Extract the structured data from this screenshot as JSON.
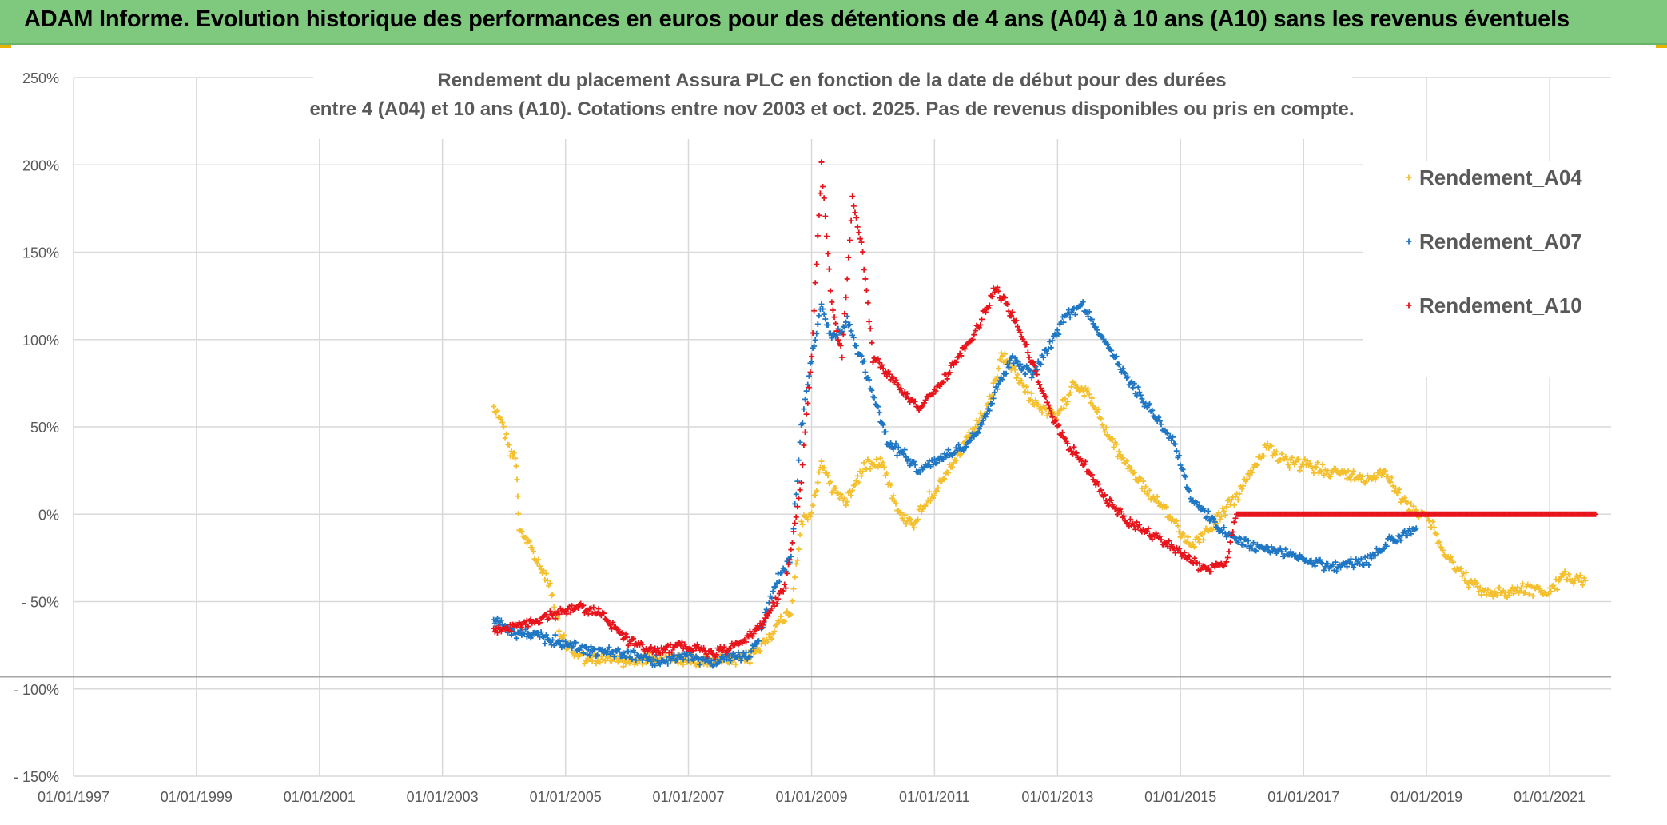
{
  "header": {
    "banner": "ADAM Informe. Evolution historique des performances en euros pour des détentions de 4 ans (A04) à 10 ans (A10) sans les revenus éventuels"
  },
  "colors": {
    "banner_bg": "#7fc97f",
    "grid": "#d9d9d9",
    "A04": "#f5c02f",
    "A07": "#1f77c4",
    "A10": "#e8141c"
  },
  "chart_data": {
    "type": "scatter",
    "title_lines": [
      "Rendement du placement Assura PLC en fonction de la date de début pour des durées",
      "entre 4 (A04) et 10 ans (A10). Cotations entre nov 2003 et oct. 2025. Pas de revenus disponibles ou pris en compte."
    ],
    "xlabel": "",
    "ylabel": "",
    "x_range": [
      "1997-01-01",
      "2022-01-01"
    ],
    "x_ticks": [
      "01/01/1997",
      "01/01/1999",
      "01/01/2001",
      "01/01/2003",
      "01/01/2005",
      "01/01/2007",
      "01/01/2009",
      "01/01/2011",
      "01/01/2013",
      "01/01/2015",
      "01/01/2017",
      "01/01/2019",
      "01/01/2021"
    ],
    "y_range": [
      -150,
      250
    ],
    "y_ticks": [
      "250%",
      "200%",
      "150%",
      "100%",
      "50%",
      "0%",
      "- 50%",
      "- 100%",
      "- 150%"
    ],
    "legend_position": "top-right",
    "grid": true,
    "series": [
      {
        "name": "Rendement_A04",
        "points": [
          [
            "2003-11-01",
            62
          ],
          [
            "2003-12-15",
            55
          ],
          [
            "2004-02-01",
            38
          ],
          [
            "2004-03-15",
            30
          ],
          [
            "2004-04-01",
            -8
          ],
          [
            "2004-06-01",
            -18
          ],
          [
            "2004-08-01",
            -30
          ],
          [
            "2004-10-01",
            -40
          ],
          [
            "2004-12-01",
            -70
          ],
          [
            "2005-03-01",
            -80
          ],
          [
            "2005-06-01",
            -84
          ],
          [
            "2005-09-01",
            -82
          ],
          [
            "2006-01-01",
            -84
          ],
          [
            "2006-06-01",
            -82
          ],
          [
            "2007-01-01",
            -83
          ],
          [
            "2007-06-01",
            -84
          ],
          [
            "2007-10-01",
            -84
          ],
          [
            "2008-01-01",
            -82
          ],
          [
            "2008-03-01",
            -76
          ],
          [
            "2008-06-01",
            -65
          ],
          [
            "2008-09-01",
            -55
          ],
          [
            "2008-11-01",
            -5
          ],
          [
            "2009-01-01",
            0
          ],
          [
            "2009-03-01",
            30
          ],
          [
            "2009-05-01",
            15
          ],
          [
            "2009-08-01",
            8
          ],
          [
            "2009-10-01",
            20
          ],
          [
            "2009-12-01",
            30
          ],
          [
            "2010-03-01",
            30
          ],
          [
            "2010-06-01",
            0
          ],
          [
            "2010-09-01",
            -5
          ],
          [
            "2010-12-01",
            10
          ],
          [
            "2011-03-01",
            20
          ],
          [
            "2011-06-01",
            35
          ],
          [
            "2011-09-01",
            50
          ],
          [
            "2011-12-01",
            65
          ],
          [
            "2012-02-01",
            90
          ],
          [
            "2012-04-01",
            85
          ],
          [
            "2012-07-01",
            70
          ],
          [
            "2012-10-01",
            60
          ],
          [
            "2013-01-01",
            55
          ],
          [
            "2013-04-01",
            75
          ],
          [
            "2013-07-01",
            70
          ],
          [
            "2013-10-01",
            50
          ],
          [
            "2014-01-01",
            35
          ],
          [
            "2014-06-01",
            15
          ],
          [
            "2014-12-01",
            -5
          ],
          [
            "2015-03-01",
            -18
          ],
          [
            "2015-06-01",
            -10
          ],
          [
            "2015-09-01",
            0
          ],
          [
            "2015-12-01",
            10
          ],
          [
            "2016-03-01",
            25
          ],
          [
            "2016-06-01",
            40
          ],
          [
            "2016-09-01",
            30
          ],
          [
            "2017-01-01",
            28
          ],
          [
            "2017-06-01",
            25
          ],
          [
            "2017-10-01",
            22
          ],
          [
            "2018-01-01",
            20
          ],
          [
            "2018-05-01",
            25
          ],
          [
            "2018-09-01",
            5
          ],
          [
            "2019-01-01",
            0
          ],
          [
            "2019-04-01",
            -20
          ],
          [
            "2019-08-01",
            -35
          ],
          [
            "2019-12-01",
            -45
          ],
          [
            "2020-04-01",
            -45
          ],
          [
            "2020-08-01",
            -42
          ],
          [
            "2021-01-01",
            -45
          ],
          [
            "2021-04-01",
            -35
          ],
          [
            "2021-08-01",
            -38
          ]
        ]
      },
      {
        "name": "Rendement_A07",
        "points": [
          [
            "2003-11-01",
            -60
          ],
          [
            "2004-03-01",
            -68
          ],
          [
            "2004-08-01",
            -70
          ],
          [
            "2005-01-01",
            -74
          ],
          [
            "2005-06-01",
            -78
          ],
          [
            "2006-01-01",
            -80
          ],
          [
            "2006-06-01",
            -84
          ],
          [
            "2007-01-01",
            -82
          ],
          [
            "2007-06-01",
            -84
          ],
          [
            "2007-10-01",
            -82
          ],
          [
            "2008-01-01",
            -80
          ],
          [
            "2008-03-01",
            -68
          ],
          [
            "2008-06-01",
            -40
          ],
          [
            "2008-09-01",
            -25
          ],
          [
            "2008-11-01",
            50
          ],
          [
            "2009-01-01",
            90
          ],
          [
            "2009-03-01",
            120
          ],
          [
            "2009-05-01",
            100
          ],
          [
            "2009-08-01",
            110
          ],
          [
            "2009-10-01",
            95
          ],
          [
            "2010-01-01",
            70
          ],
          [
            "2010-04-01",
            40
          ],
          [
            "2010-07-01",
            35
          ],
          [
            "2010-10-01",
            25
          ],
          [
            "2011-01-01",
            30
          ],
          [
            "2011-04-01",
            35
          ],
          [
            "2011-07-01",
            40
          ],
          [
            "2011-10-01",
            50
          ],
          [
            "2012-01-01",
            70
          ],
          [
            "2012-04-01",
            90
          ],
          [
            "2012-08-01",
            80
          ],
          [
            "2012-12-01",
            100
          ],
          [
            "2013-03-01",
            115
          ],
          [
            "2013-06-01",
            120
          ],
          [
            "2013-09-01",
            105
          ],
          [
            "2014-01-01",
            85
          ],
          [
            "2014-06-01",
            65
          ],
          [
            "2014-12-01",
            40
          ],
          [
            "2015-03-01",
            10
          ],
          [
            "2015-06-01",
            0
          ],
          [
            "2015-09-01",
            -10
          ],
          [
            "2015-12-01",
            -15
          ],
          [
            "2016-06-01",
            -20
          ],
          [
            "2017-01-01",
            -25
          ],
          [
            "2017-06-01",
            -30
          ],
          [
            "2018-01-01",
            -28
          ],
          [
            "2018-06-01",
            -15
          ],
          [
            "2018-11-01",
            -8
          ]
        ]
      },
      {
        "name": "Rendement_A10",
        "points": [
          [
            "2003-11-01",
            -67
          ],
          [
            "2004-03-01",
            -65
          ],
          [
            "2004-08-01",
            -60
          ],
          [
            "2005-01-01",
            -55
          ],
          [
            "2005-04-01",
            -53
          ],
          [
            "2005-08-01",
            -57
          ],
          [
            "2006-01-01",
            -72
          ],
          [
            "2006-06-01",
            -78
          ],
          [
            "2007-01-01",
            -75
          ],
          [
            "2007-06-01",
            -80
          ],
          [
            "2007-10-01",
            -75
          ],
          [
            "2008-01-01",
            -70
          ],
          [
            "2008-04-01",
            -60
          ],
          [
            "2008-08-01",
            -40
          ],
          [
            "2008-11-01",
            20
          ],
          [
            "2009-01-01",
            90
          ],
          [
            "2009-03-01",
            200
          ],
          [
            "2009-05-01",
            120
          ],
          [
            "2009-07-01",
            90
          ],
          [
            "2009-09-01",
            180
          ],
          [
            "2009-11-01",
            150
          ],
          [
            "2010-01-01",
            90
          ],
          [
            "2010-04-01",
            80
          ],
          [
            "2010-07-01",
            70
          ],
          [
            "2010-10-01",
            60
          ],
          [
            "2011-01-01",
            70
          ],
          [
            "2011-06-01",
            90
          ],
          [
            "2011-10-01",
            110
          ],
          [
            "2012-01-01",
            130
          ],
          [
            "2012-05-01",
            110
          ],
          [
            "2012-09-01",
            80
          ],
          [
            "2012-12-01",
            55
          ],
          [
            "2013-03-01",
            40
          ],
          [
            "2013-06-01",
            30
          ],
          [
            "2013-10-01",
            10
          ],
          [
            "2014-03-01",
            -5
          ],
          [
            "2014-08-01",
            -12
          ],
          [
            "2015-01-01",
            -22
          ],
          [
            "2015-06-01",
            -32
          ],
          [
            "2015-10-01",
            -28
          ],
          [
            "2015-12-01",
            0
          ],
          [
            "2017-01-01",
            0
          ],
          [
            "2019-01-01",
            0
          ],
          [
            "2021-10-01",
            0
          ]
        ]
      }
    ]
  }
}
